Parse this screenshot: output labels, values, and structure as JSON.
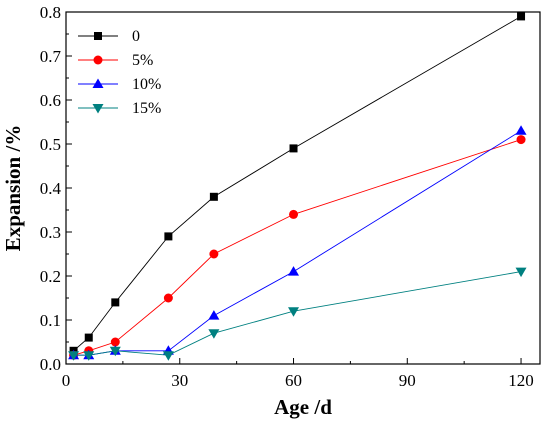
{
  "chart_data": {
    "type": "line",
    "title": "",
    "xlabel": "Age /d",
    "ylabel": "Expansion /%",
    "xlim": [
      0,
      125
    ],
    "ylim": [
      0.0,
      0.8
    ],
    "xticks": [
      0,
      30,
      60,
      90,
      120
    ],
    "yticks": [
      0.0,
      0.1,
      0.2,
      0.3,
      0.4,
      0.5,
      0.6,
      0.7,
      0.8
    ],
    "xtick_labels": [
      "0",
      "30",
      "60",
      "90",
      "120"
    ],
    "ytick_labels": [
      "0.0",
      "0.1",
      "0.2",
      "0.3",
      "0.4",
      "0.5",
      "0.6",
      "0.7",
      "0.8"
    ],
    "grid": false,
    "legend_position": "top-left",
    "series": [
      {
        "name": "0",
        "color": "#000000",
        "marker": "square",
        "x": [
          2,
          6,
          13,
          27,
          39,
          60,
          120
        ],
        "y": [
          0.03,
          0.06,
          0.14,
          0.29,
          0.38,
          0.49,
          0.79
        ]
      },
      {
        "name": "5%",
        "color": "#ff0000",
        "marker": "circle",
        "x": [
          2,
          6,
          13,
          27,
          39,
          60,
          120
        ],
        "y": [
          0.02,
          0.03,
          0.05,
          0.15,
          0.25,
          0.34,
          0.51
        ]
      },
      {
        "name": "10%",
        "color": "#0000ff",
        "marker": "triangle-up",
        "x": [
          2,
          6,
          13,
          27,
          39,
          60,
          120
        ],
        "y": [
          0.02,
          0.02,
          0.03,
          0.03,
          0.11,
          0.21,
          0.53
        ]
      },
      {
        "name": "15%",
        "color": "#008080",
        "marker": "triangle-down",
        "x": [
          2,
          6,
          13,
          27,
          39,
          60,
          120
        ],
        "y": [
          0.02,
          0.02,
          0.03,
          0.02,
          0.07,
          0.12,
          0.21
        ]
      }
    ]
  }
}
